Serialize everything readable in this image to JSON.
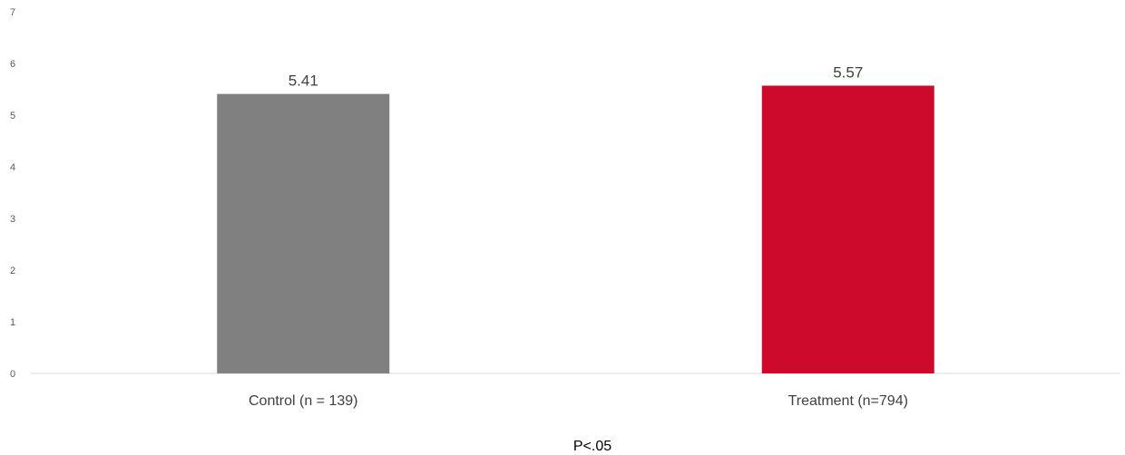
{
  "chart_data": {
    "type": "bar",
    "categories": [
      "Control (n = 139)",
      "Treatment (n=794)"
    ],
    "values": [
      5.41,
      5.57
    ],
    "data_labels": [
      "5.41",
      "5.57"
    ],
    "colors": [
      "#808080",
      "#CE0A2C"
    ],
    "title": "",
    "xlabel": "",
    "ylabel": "",
    "ylim": [
      0,
      7
    ],
    "yticks": [
      0,
      1,
      2,
      3,
      4,
      5,
      6,
      7
    ],
    "grid": false,
    "legend": "none",
    "annotation": "P<.05"
  }
}
